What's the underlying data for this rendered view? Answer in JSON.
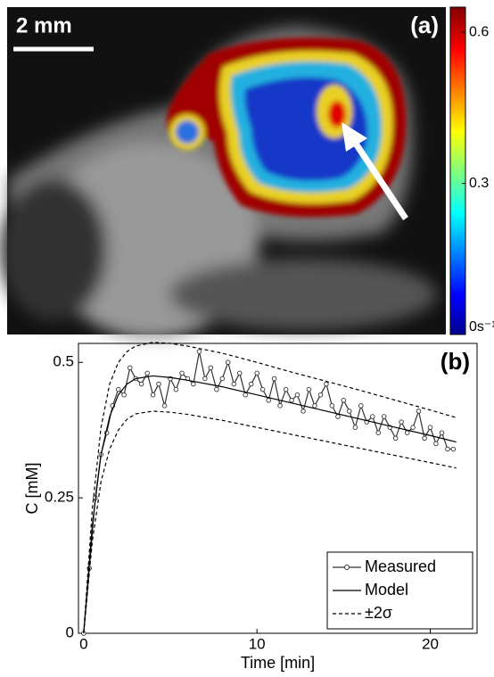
{
  "panel_a": {
    "label": "(a)",
    "scale_bar": "2 mm",
    "colorbar": {
      "lim": [
        0,
        0.65
      ],
      "ticks": [
        {
          "value": 0,
          "label": "0s⁻¹"
        },
        0.3,
        0.6
      ]
    }
  },
  "chart_data": {
    "type": "line",
    "label": "(b)",
    "xlabel": "Time [min]",
    "ylabel": "C [mM]",
    "xlim": [
      -0.3,
      22.7
    ],
    "ylim": [
      0,
      0.535
    ],
    "xticks": [
      0,
      10,
      20
    ],
    "yticks": [
      0,
      0.25,
      0.5
    ],
    "legend": "lower right",
    "series": [
      {
        "name": "Measured",
        "color": "#333333",
        "style": "line-marker",
        "x": [
          0,
          0.33,
          0.67,
          1,
          1.33,
          1.67,
          2,
          2.33,
          2.67,
          3,
          3.33,
          3.67,
          4,
          4.33,
          4.67,
          5,
          5.33,
          5.67,
          6,
          6.33,
          6.67,
          7,
          7.33,
          7.67,
          8,
          8.33,
          8.67,
          9,
          9.33,
          9.67,
          10,
          10.33,
          10.67,
          11,
          11.33,
          11.67,
          12,
          12.33,
          12.67,
          13,
          13.33,
          13.67,
          14,
          14.33,
          14.67,
          15,
          15.33,
          15.67,
          16,
          16.33,
          16.67,
          17,
          17.33,
          17.67,
          18,
          18.33,
          18.67,
          19,
          19.33,
          19.67,
          20,
          20.33,
          20.67,
          21,
          21.33
        ],
        "values": [
          0,
          0.12,
          0.25,
          0.33,
          0.37,
          0.42,
          0.45,
          0.44,
          0.49,
          0.47,
          0.46,
          0.48,
          0.44,
          0.46,
          0.42,
          0.47,
          0.45,
          0.48,
          0.47,
          0.46,
          0.52,
          0.47,
          0.49,
          0.45,
          0.47,
          0.5,
          0.46,
          0.48,
          0.44,
          0.46,
          0.48,
          0.45,
          0.43,
          0.47,
          0.42,
          0.45,
          0.43,
          0.44,
          0.41,
          0.45,
          0.42,
          0.44,
          0.46,
          0.42,
          0.4,
          0.43,
          0.41,
          0.38,
          0.42,
          0.39,
          0.4,
          0.37,
          0.4,
          0.38,
          0.36,
          0.39,
          0.37,
          0.38,
          0.41,
          0.36,
          0.38,
          0.35,
          0.37,
          0.34,
          0.34
        ]
      },
      {
        "name": "Model",
        "color": "#000000",
        "style": "solid",
        "x": [
          0,
          0.5,
          1,
          1.5,
          2,
          2.5,
          3,
          4,
          5,
          6,
          8,
          10,
          12,
          14,
          16,
          18,
          20,
          21.5
        ],
        "values": [
          0,
          0.2,
          0.33,
          0.4,
          0.44,
          0.46,
          0.47,
          0.475,
          0.472,
          0.467,
          0.455,
          0.44,
          0.425,
          0.41,
          0.395,
          0.38,
          0.365,
          0.353
        ]
      },
      {
        "name": "±2σ",
        "color": "#000000",
        "style": "dashed",
        "x": [
          0,
          0.5,
          1,
          1.5,
          2,
          2.5,
          3,
          4,
          5,
          6,
          8,
          10,
          12,
          14,
          16,
          18,
          20,
          21.5
        ],
        "values": [
          0,
          0.23,
          0.38,
          0.46,
          0.5,
          0.52,
          0.53,
          0.537,
          0.535,
          0.53,
          0.517,
          0.5,
          0.482,
          0.465,
          0.448,
          0.43,
          0.412,
          0.398
        ],
        "lower": [
          0,
          0.17,
          0.28,
          0.34,
          0.375,
          0.395,
          0.405,
          0.41,
          0.408,
          0.404,
          0.393,
          0.38,
          0.367,
          0.354,
          0.341,
          0.328,
          0.315,
          0.305
        ]
      }
    ]
  }
}
